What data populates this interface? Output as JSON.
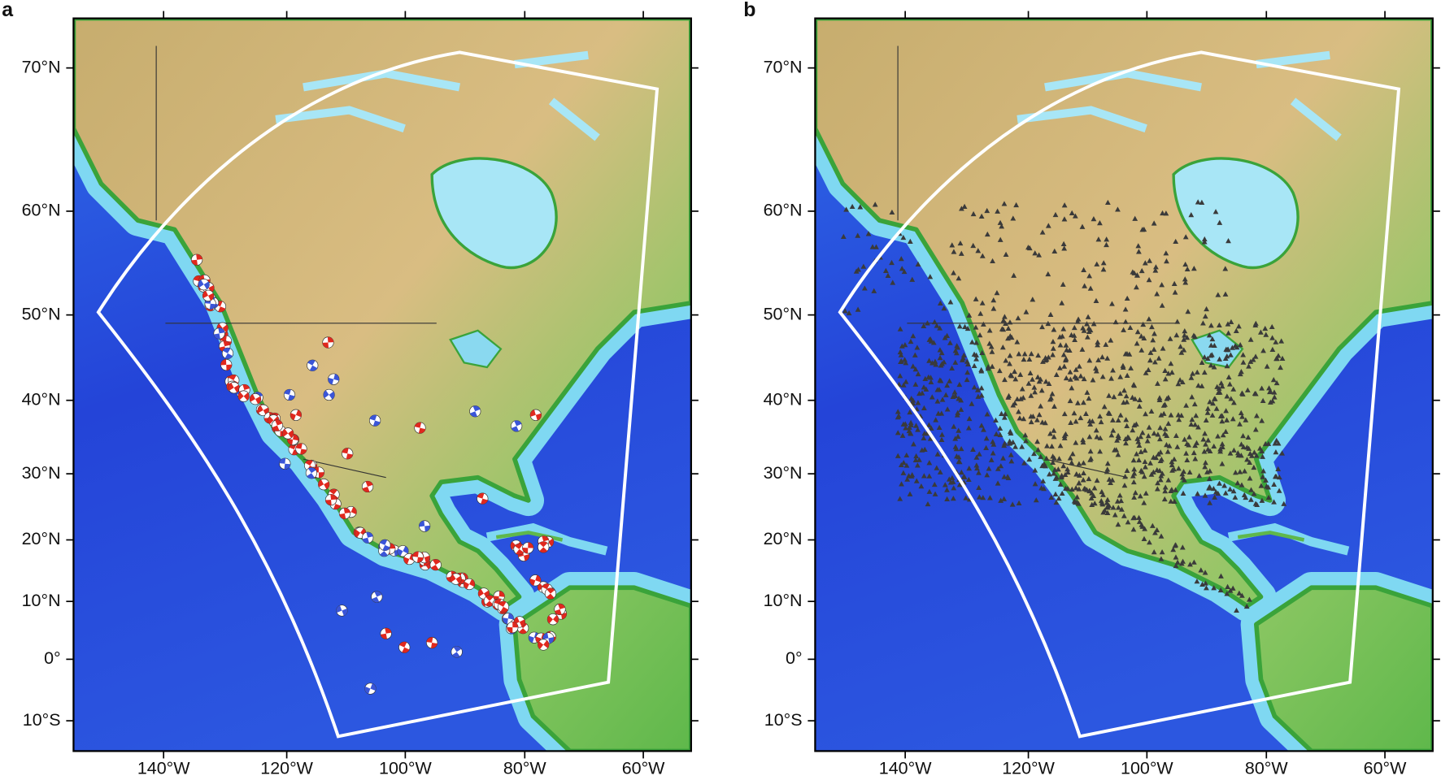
{
  "panels": [
    {
      "label": "a",
      "lat_labels": [
        "70°N",
        "60°N",
        "50°N",
        "40°N",
        "30°N",
        "20°N",
        "10°N",
        "0°",
        "10°S"
      ],
      "lon_labels": [
        "140°W",
        "120°W",
        "100°W",
        "80°W",
        "60°W"
      ]
    },
    {
      "label": "b",
      "lat_labels": [
        "70°N",
        "60°N",
        "50°N",
        "40°N",
        "30°N",
        "20°N",
        "10°N",
        "0°",
        "10°S"
      ],
      "lon_labels": [
        "140°W",
        "120°W",
        "100°W",
        "80°W",
        "60°W"
      ]
    }
  ]
}
